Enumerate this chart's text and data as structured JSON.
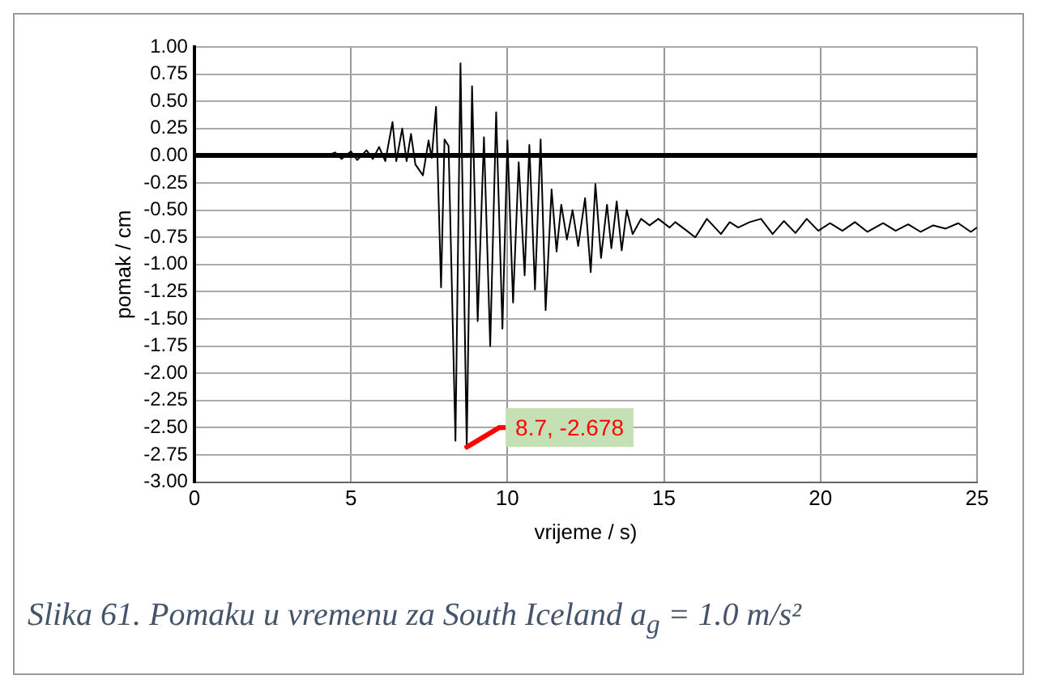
{
  "chart_data": {
    "type": "line",
    "xlabel": "vrijeme / s)",
    "ylabel": "pomak / cm",
    "xlim": [
      0,
      25
    ],
    "xticks": [
      0,
      5,
      10,
      15,
      20,
      25
    ],
    "ylim": [
      -3,
      1
    ],
    "yticks": [
      {
        "value": 1,
        "label": "1.00"
      },
      {
        "value": 0.75,
        "label": "0.75"
      },
      {
        "value": 0.5,
        "label": "0.50"
      },
      {
        "value": 0.25,
        "label": "0.25"
      },
      {
        "value": 0,
        "label": "0.00"
      },
      {
        "value": -0.25,
        "label": "-0.25"
      },
      {
        "value": -0.5,
        "label": "-0.50"
      },
      {
        "value": -0.75,
        "label": "-0.75"
      },
      {
        "value": -1,
        "label": "-1.00"
      },
      {
        "value": -1.25,
        "label": "-1.25"
      },
      {
        "value": -1.5,
        "label": "-1.50"
      },
      {
        "value": -1.75,
        "label": "-1.75"
      },
      {
        "value": -2,
        "label": "-2.00"
      },
      {
        "value": -2.25,
        "label": "-2.25"
      },
      {
        "value": -2.5,
        "label": "-2.50"
      },
      {
        "value": -2.75,
        "label": "-2.75"
      },
      {
        "value": -3,
        "label": "-3.00"
      }
    ],
    "grid": true,
    "legend": false,
    "marker": "none",
    "line_style": "solid",
    "series": [
      {
        "color": "#000000",
        "x": [
          0,
          4.2,
          4.5,
          4.7,
          5,
          5.2,
          5.5,
          5.7,
          5.9,
          6.1,
          6.33,
          6.45,
          6.64,
          6.78,
          6.92,
          7.06,
          7.3,
          7.48,
          7.58,
          7.72,
          7.88,
          7.99,
          8.12,
          8.34,
          8.5,
          8.7,
          8.87,
          9.05,
          9.25,
          9.45,
          9.64,
          9.84,
          10,
          10.18,
          10.36,
          10.55,
          10.7,
          10.88,
          11.06,
          11.22,
          11.41,
          11.57,
          11.72,
          11.9,
          12.08,
          12.26,
          12.48,
          12.66,
          12.81,
          12.99,
          13.18,
          13.32,
          13.49,
          13.65,
          13.81,
          14,
          14.27,
          14.54,
          14.82,
          15.18,
          15.36,
          15.73,
          16,
          16.37,
          16.82,
          17.1,
          17.37,
          17.74,
          18.1,
          18.47,
          18.83,
          19.2,
          19.56,
          19.93,
          20.3,
          20.7,
          21.1,
          21.5,
          22,
          22.4,
          22.8,
          23.2,
          23.6,
          24,
          24.4,
          24.8,
          25
        ],
        "values": [
          0,
          0,
          0.03,
          -0.03,
          0.04,
          -0.04,
          0.05,
          -0.03,
          0.08,
          -0.05,
          0.31,
          -0.05,
          0.25,
          -0.05,
          0.2,
          -0.08,
          -0.18,
          0.14,
          -0.02,
          0.45,
          -1.21,
          0.15,
          0.09,
          -2.62,
          0.85,
          -2.678,
          0.64,
          -1.52,
          0.17,
          -1.75,
          0.4,
          -1.59,
          0.14,
          -1.35,
          -0.06,
          -1.1,
          0.1,
          -1.23,
          0.15,
          -1.42,
          -0.31,
          -0.88,
          -0.45,
          -0.77,
          -0.5,
          -0.83,
          -0.39,
          -1.07,
          -0.26,
          -0.94,
          -0.45,
          -0.85,
          -0.42,
          -0.87,
          -0.5,
          -0.72,
          -0.58,
          -0.64,
          -0.58,
          -0.66,
          -0.61,
          -0.69,
          -0.75,
          -0.58,
          -0.72,
          -0.61,
          -0.66,
          -0.61,
          -0.58,
          -0.72,
          -0.6,
          -0.71,
          -0.58,
          -0.69,
          -0.62,
          -0.69,
          -0.61,
          -0.7,
          -0.62,
          -0.69,
          -0.63,
          -0.7,
          -0.64,
          -0.67,
          -0.62,
          -0.7,
          -0.66
        ]
      }
    ],
    "annotations": [
      {
        "text": "8.7, -2.678",
        "x": 8.7,
        "y": -2.678
      },
      "Slika 61. Pomaku u vremenu za South Iceland a$_{g}$ = 1.0 m/s²"
    ]
  }
}
